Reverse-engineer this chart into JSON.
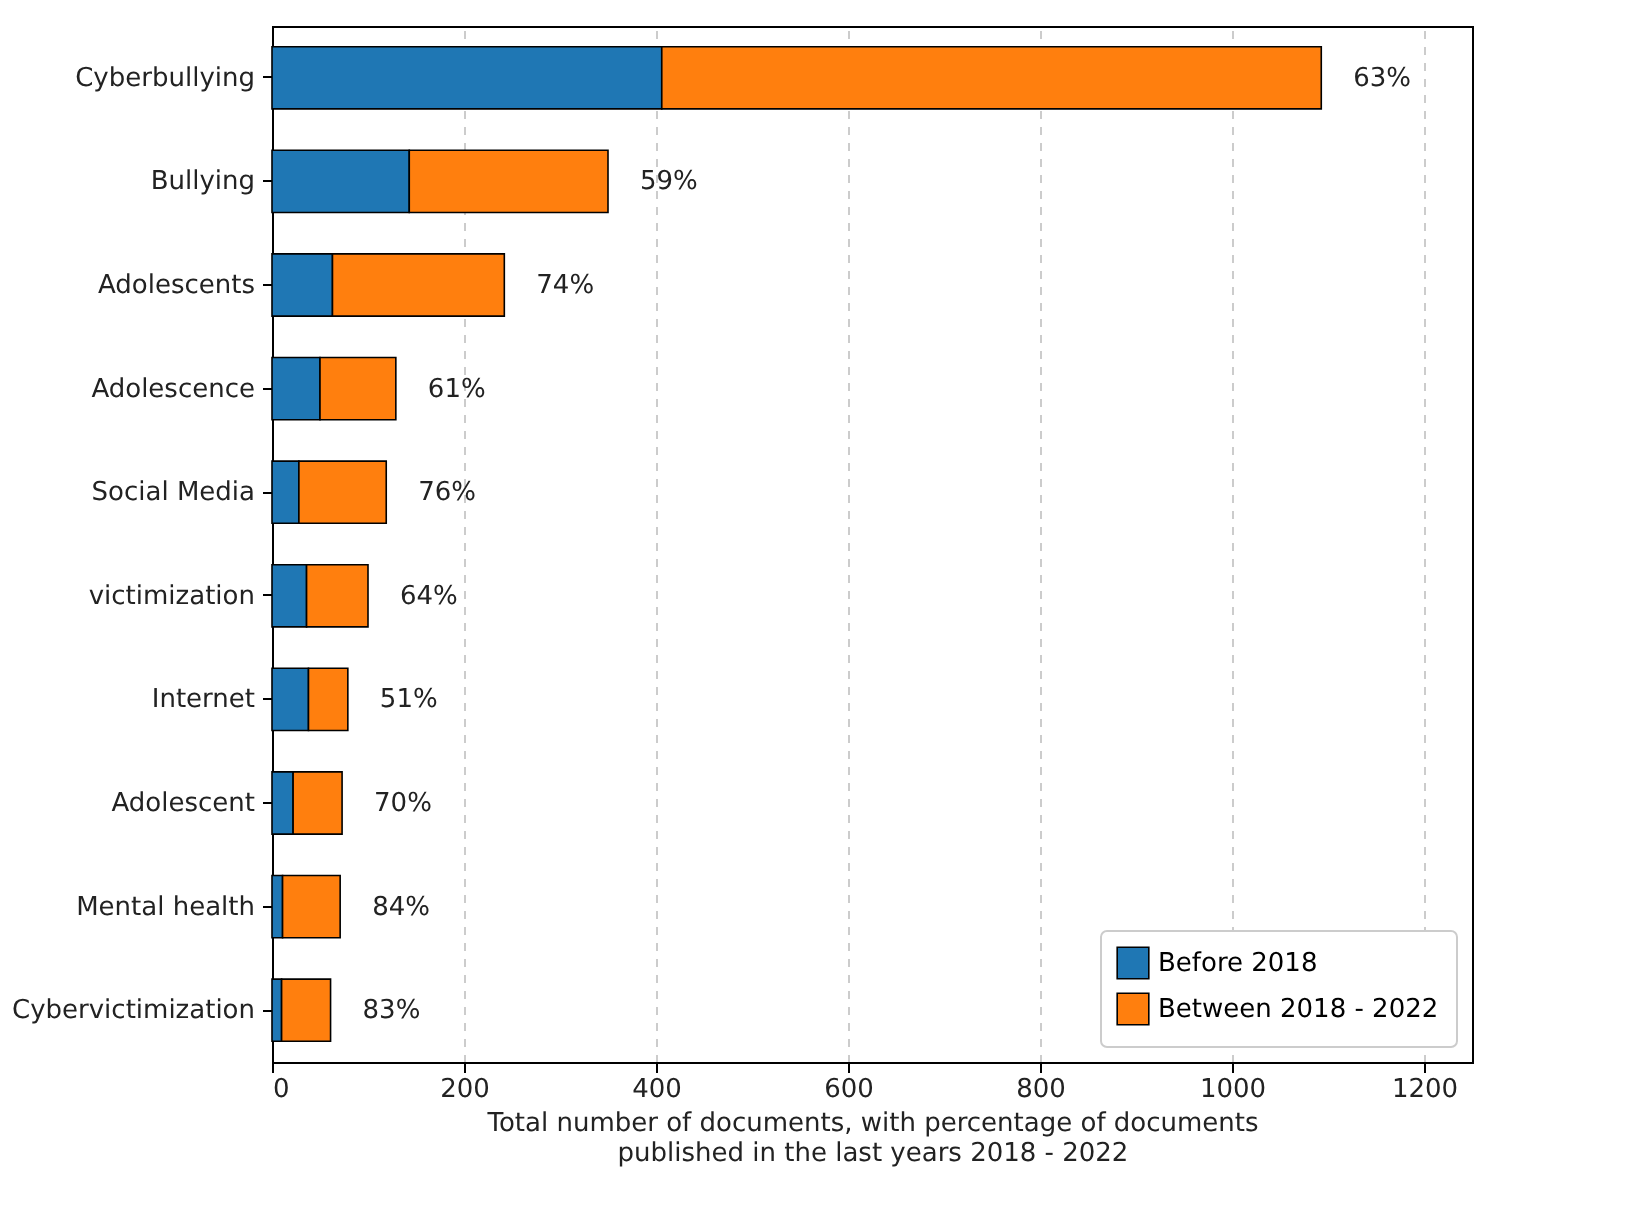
{
  "chart_data": {
    "type": "bar",
    "orientation": "horizontal",
    "stacked": true,
    "xlabel": "Total number of documents, with percentage of documents\npublished in the last years 2018 - 2022",
    "categories": [
      "Cyberbullying",
      "Bullying",
      "Adolescents",
      "Adolescence",
      "Social Media",
      "victimization",
      "Internet",
      "Adolescent",
      "Mental health",
      "Cybervictimization"
    ],
    "series": [
      {
        "name": "Before 2018",
        "color": "#1f77b4",
        "values": [
          406,
          143,
          63,
          50,
          28,
          36,
          38,
          22,
          11,
          10
        ]
      },
      {
        "name": "Between 2018 - 2022",
        "color": "#ff7f0e",
        "values": [
          687,
          207,
          179,
          79,
          91,
          64,
          41,
          51,
          60,
          51
        ]
      }
    ],
    "annotations": [
      {
        "text": "63%",
        "x": 1093,
        "y": "Cyberbullying"
      },
      {
        "text": "59%",
        "x": 350,
        "y": "Bullying"
      },
      {
        "text": "74%",
        "x": 242,
        "y": "Adolescents"
      },
      {
        "text": "61%",
        "x": 129,
        "y": "Adolescence"
      },
      {
        "text": "76%",
        "x": 119,
        "y": "Social Media"
      },
      {
        "text": "64%",
        "x": 100,
        "y": "victimization"
      },
      {
        "text": "51%",
        "x": 79,
        "y": "Internet"
      },
      {
        "text": "70%",
        "x": 73,
        "y": "Adolescent"
      },
      {
        "text": "84%",
        "x": 71,
        "y": "Mental health"
      },
      {
        "text": "83%",
        "x": 61,
        "y": "Cybervictimization"
      }
    ],
    "xlim": [
      0,
      1250
    ],
    "xticks": [
      0,
      200,
      400,
      600,
      800,
      1000,
      1200
    ],
    "grid": "x",
    "legend": "bottom right"
  }
}
